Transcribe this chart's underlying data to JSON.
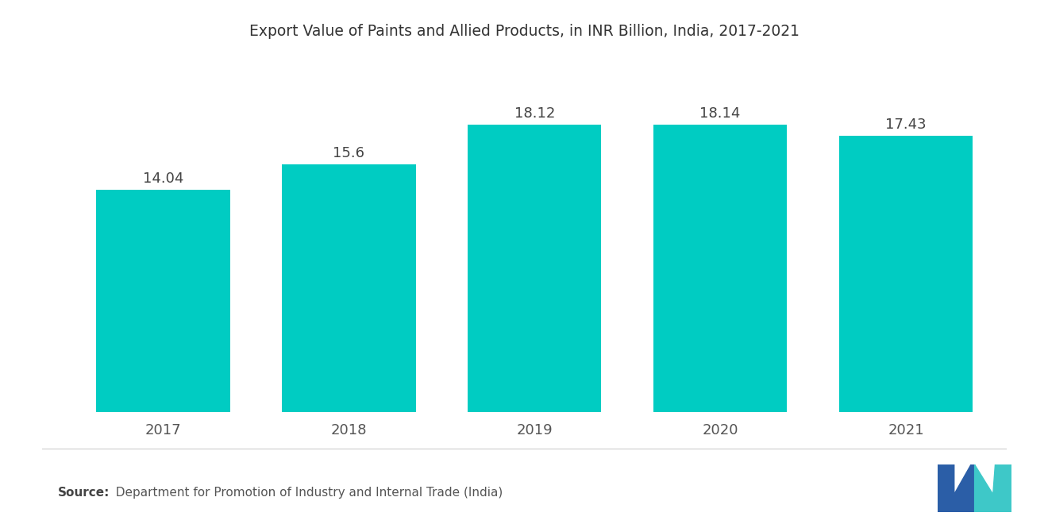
{
  "title": "Export Value of Paints and Allied Products, in INR Billion, India, 2017-2021",
  "categories": [
    "2017",
    "2018",
    "2019",
    "2020",
    "2021"
  ],
  "values": [
    14.04,
    15.6,
    18.12,
    18.14,
    17.43
  ],
  "bar_color": "#00CCC2",
  "background_color": "#ffffff",
  "title_fontsize": 13.5,
  "label_fontsize": 13,
  "tick_fontsize": 13,
  "source_bold": "Source:",
  "source_normal": "  Department for Promotion of Industry and Internal Trade (India)",
  "ylim": [
    0,
    22
  ],
  "bar_width": 0.72,
  "logo_blue": "#2B5EA7",
  "logo_teal": "#3EC8C8",
  "separator_color": "#cccccc",
  "text_color": "#555555"
}
